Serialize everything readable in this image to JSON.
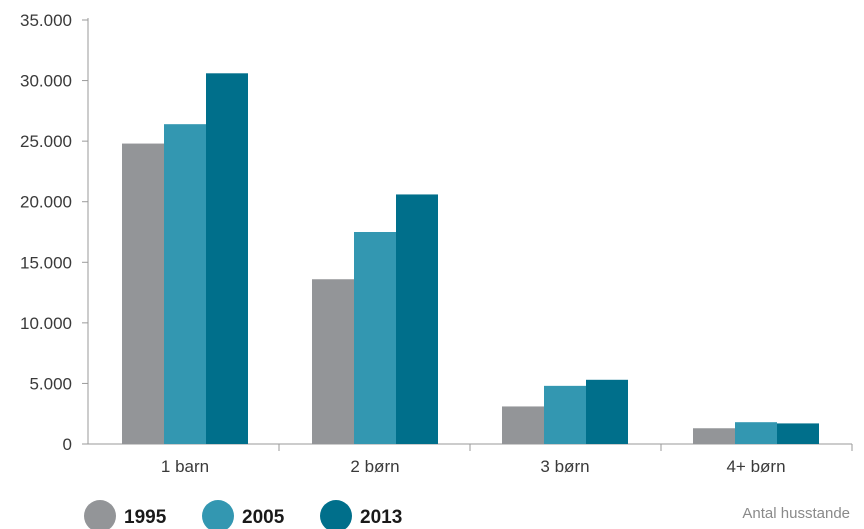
{
  "chart_data": {
    "type": "bar",
    "title": "",
    "xlabel": "",
    "ylabel": "Antal husstande",
    "categories": [
      "1 barn",
      "2 børn",
      "3 børn",
      "4+ børn"
    ],
    "series": [
      {
        "name": "1995",
        "color": "#939598",
        "values": [
          24800,
          13600,
          3100,
          1300
        ]
      },
      {
        "name": "2005",
        "color": "#3397b1",
        "values": [
          26400,
          17500,
          4800,
          1800
        ]
      },
      {
        "name": "2013",
        "color": "#006f8b",
        "values": [
          30600,
          20600,
          5300,
          1700
        ]
      }
    ],
    "ylim": [
      0,
      35000
    ],
    "yticks": [
      0,
      5000,
      10000,
      15000,
      20000,
      25000,
      30000,
      35000
    ],
    "ytick_labels": [
      "0",
      "5.000",
      "10.000",
      "15.000",
      "20.000",
      "25.000",
      "30.000",
      "35.000"
    ],
    "grid": false,
    "legend_position": "bottom-left"
  }
}
